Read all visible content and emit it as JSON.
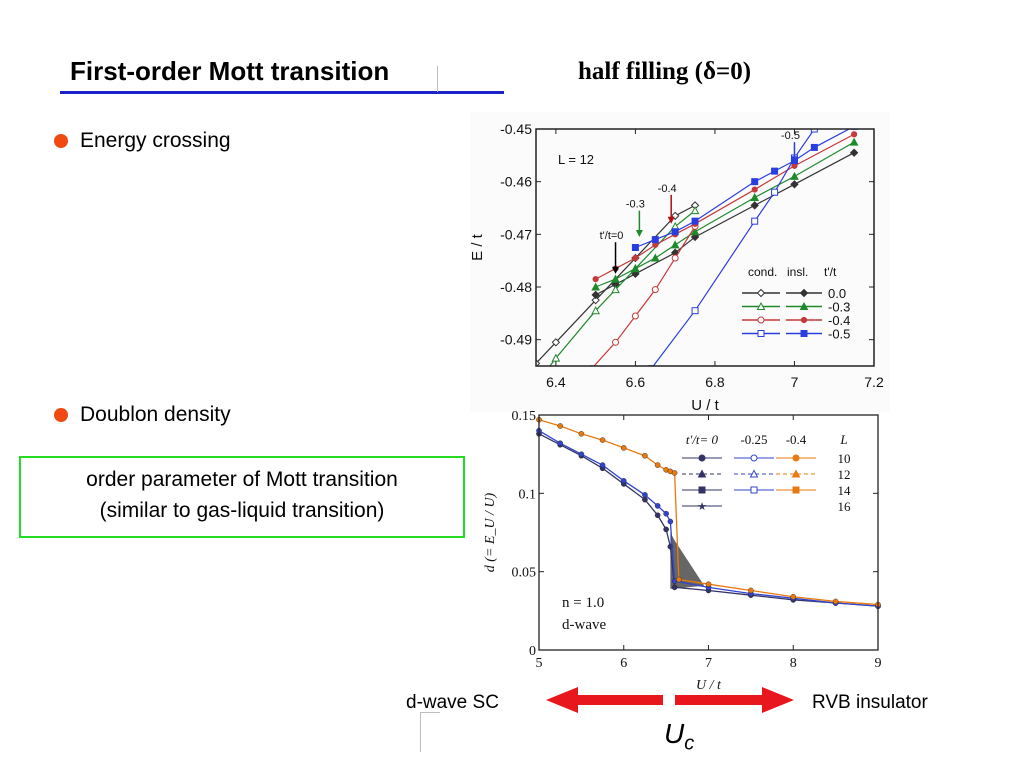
{
  "slide": {
    "title": "First-order Mott  transition",
    "subtitle": "half filling  (δ=0)",
    "bullets": [
      "Energy crossing",
      "Doublon density"
    ],
    "order_box": {
      "line1": "order parameter of Mott transition",
      "line2": "(similar to gas-liquid transition)"
    },
    "left_label": "d-wave SC",
    "right_label": "RVB insulator",
    "uc_main": "U",
    "uc_sub": "c",
    "colors": {
      "title_rule": "#1a22c8",
      "bullet": "#f04a12",
      "box_border": "#22dd22",
      "arrow": "#e8161d"
    }
  },
  "chart_data": [
    {
      "type": "line",
      "xlabel": "U / t",
      "ylabel": "E / t",
      "xlim": [
        6.35,
        7.2
      ],
      "ylim": [
        -0.495,
        -0.45
      ],
      "xticks": [
        "6.4",
        "6.6",
        "6.8",
        "7",
        "7.2"
      ],
      "xtick_values": [
        6.4,
        6.6,
        6.8,
        7.0,
        7.2
      ],
      "yticks": [
        "-0.45",
        "-0.46",
        "-0.47",
        "-0.48",
        "-0.49"
      ],
      "ytick_values": [
        -0.45,
        -0.46,
        -0.47,
        -0.48,
        -0.49
      ],
      "note": "L = 12",
      "legend_headers": [
        "cond.",
        "insl.",
        "t'/t"
      ],
      "series": [
        {
          "name": "0.0",
          "color": "#333333",
          "marker": "diamond",
          "cond": {
            "x": [
              6.35,
              6.4,
              6.5,
              6.6,
              6.7,
              6.75
            ],
            "y": [
              -0.4945,
              -0.4905,
              -0.4825,
              -0.4745,
              -0.4665,
              -0.4645
            ]
          },
          "insl": {
            "x": [
              6.5,
              6.55,
              6.6,
              6.7,
              6.75,
              6.9,
              7.0,
              7.15
            ],
            "y": [
              -0.4815,
              -0.4795,
              -0.4775,
              -0.4735,
              -0.4705,
              -0.4645,
              -0.4605,
              -0.4545
            ]
          }
        },
        {
          "name": "-0.3",
          "color": "#1e8a2c",
          "marker": "triangle",
          "cond": {
            "x": [
              6.35,
              6.4,
              6.5,
              6.55,
              6.6,
              6.7,
              6.75
            ],
            "y": [
              -0.4985,
              -0.4935,
              -0.4845,
              -0.4805,
              -0.4765,
              -0.4685,
              -0.4655
            ]
          },
          "insl": {
            "x": [
              6.5,
              6.55,
              6.6,
              6.65,
              6.7,
              6.75,
              6.9,
              7.0,
              7.15
            ],
            "y": [
              -0.48,
              -0.4785,
              -0.4765,
              -0.4745,
              -0.472,
              -0.4695,
              -0.463,
              -0.459,
              -0.4525
            ]
          }
        },
        {
          "name": "-0.4",
          "color": "#c43a3a",
          "marker": "dot",
          "cond": {
            "x": [
              6.49,
              6.55,
              6.6,
              6.65,
              6.7,
              6.75
            ],
            "y": [
              -0.4955,
              -0.4905,
              -0.4855,
              -0.4805,
              -0.4745,
              -0.4685
            ]
          },
          "insl": {
            "x": [
              6.5,
              6.55,
              6.6,
              6.65,
              6.7,
              6.75,
              6.9,
              7.0,
              7.15
            ],
            "y": [
              -0.4785,
              -0.4765,
              -0.4745,
              -0.472,
              -0.47,
              -0.468,
              -0.4615,
              -0.457,
              -0.451
            ]
          }
        },
        {
          "name": "-0.5",
          "color": "#2a3ee0",
          "marker": "square",
          "cond": {
            "x": [
              6.64,
              6.75,
              6.9,
              6.95,
              7.0,
              7.05
            ],
            "y": [
              -0.4955,
              -0.4845,
              -0.4675,
              -0.462,
              -0.4555,
              -0.45
            ]
          },
          "insl": {
            "x": [
              6.6,
              6.65,
              6.7,
              6.75,
              6.9,
              6.95,
              7.0,
              7.05,
              7.15
            ],
            "y": [
              -0.4725,
              -0.471,
              -0.4695,
              -0.4675,
              -0.46,
              -0.458,
              -0.456,
              -0.4535,
              -0.4495
            ]
          }
        }
      ],
      "annotations": [
        {
          "text": "t'/t=0",
          "x": 6.55,
          "y": -0.4715,
          "tip_y": -0.4775,
          "color": "#000000"
        },
        {
          "text": "-0.3",
          "x": 6.61,
          "y": -0.4655,
          "tip_y": -0.4705,
          "color": "#1e8a2c"
        },
        {
          "text": "-0.4",
          "x": 6.69,
          "y": -0.4625,
          "tip_y": -0.468,
          "color": "#b01010"
        },
        {
          "text": "-0.5",
          "x": 7.0,
          "y": -0.4525,
          "tip_y": -0.4565,
          "color": "#2a3ee0"
        }
      ]
    },
    {
      "type": "line",
      "xlabel": "U / t",
      "ylabel": "d (= E_U / U)",
      "xlim": [
        5,
        9
      ],
      "ylim": [
        0,
        0.15
      ],
      "xticks": [
        "5",
        "6",
        "7",
        "8",
        "9"
      ],
      "xtick_values": [
        5,
        6,
        7,
        8,
        9
      ],
      "yticks": [
        "0",
        "0.05",
        "0.1",
        "0.15"
      ],
      "ytick_values": [
        0,
        0.05,
        0.1,
        0.15
      ],
      "legend_header": [
        "t'/t= 0",
        "-0.25",
        "-0.4",
        "L"
      ],
      "legend_L": [
        "10",
        "12",
        "14",
        "16"
      ],
      "text_n": "n = 1.0",
      "text_wave": "d-wave",
      "series": [
        {
          "name": "0",
          "color": "#333366",
          "x": [
            5,
            5.25,
            5.5,
            5.75,
            6,
            6.25,
            6.4,
            6.5,
            6.55,
            6.6,
            7,
            7.5,
            8,
            8.5,
            9
          ],
          "y": [
            0.138,
            0.131,
            0.124,
            0.116,
            0.106,
            0.096,
            0.086,
            0.077,
            0.066,
            0.04,
            0.038,
            0.035,
            0.032,
            0.03,
            0.028
          ]
        },
        {
          "name": "-0.25",
          "color": "#3344cc",
          "x": [
            5,
            5.25,
            5.5,
            5.75,
            6,
            6.25,
            6.4,
            6.5,
            6.55,
            6.6,
            7,
            7.5,
            8,
            8.5,
            9
          ],
          "y": [
            0.14,
            0.132,
            0.125,
            0.118,
            0.108,
            0.099,
            0.092,
            0.087,
            0.082,
            0.044,
            0.04,
            0.036,
            0.033,
            0.03,
            0.028
          ]
        },
        {
          "name": "-0.4",
          "color": "#e87a10",
          "x": [
            5,
            5.25,
            5.5,
            5.75,
            6,
            6.25,
            6.4,
            6.5,
            6.55,
            6.6,
            6.65,
            7,
            7.5,
            8,
            8.5,
            9
          ],
          "y": [
            0.147,
            0.143,
            0.138,
            0.134,
            0.129,
            0.124,
            0.118,
            0.115,
            0.114,
            0.113,
            0.045,
            0.042,
            0.038,
            0.034,
            0.031,
            0.029
          ]
        }
      ],
      "shaded_region": {
        "x": [
          6.55,
          6.6,
          6.95,
          6.55
        ],
        "y": [
          0.075,
          0.07,
          0.041,
          0.039
        ]
      }
    }
  ]
}
